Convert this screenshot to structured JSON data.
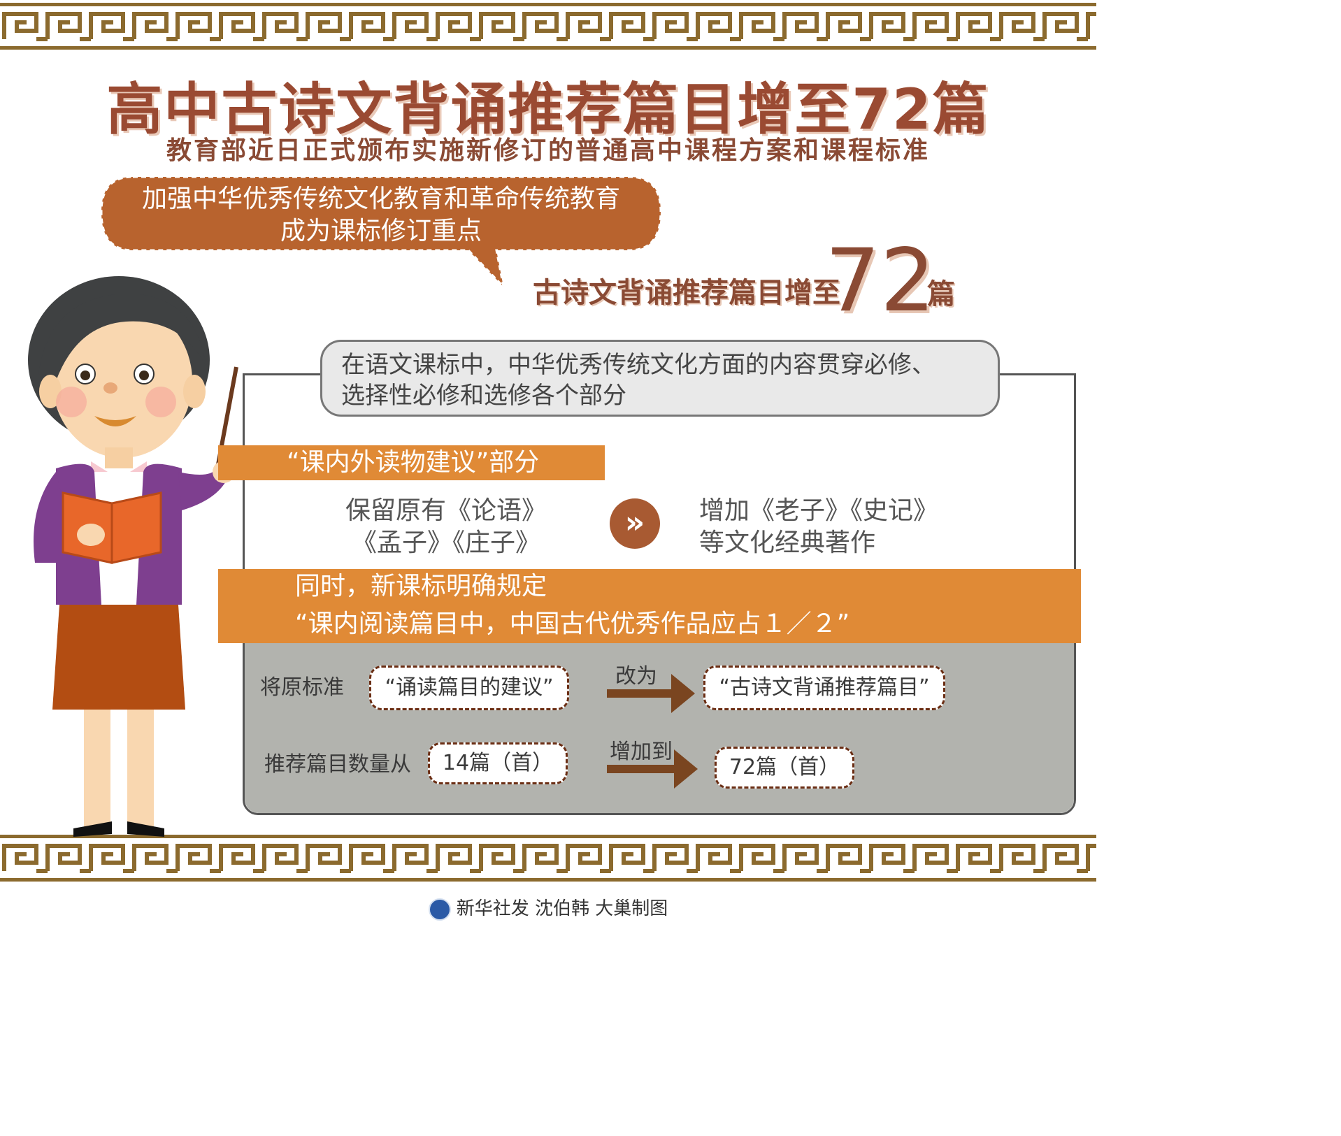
{
  "title": "高中古诗文背诵推荐篇目增至72篇",
  "subtitle": "教育部近日正式颁布实施新修订的普通高中课程方案和课程标准",
  "bubble": {
    "line1": "加强中华优秀传统文化教育和革命传统教育",
    "line2": "成为课标修订重点"
  },
  "highlight": {
    "text": "古诗文背诵推荐篇目增至",
    "number": "72",
    "unit": "篇"
  },
  "grey_box": {
    "line1": "在语文课标中，中华优秀传统文化方面的内容贯穿必修、",
    "line2": "选择性必修和选修各个部分"
  },
  "section1": {
    "label": "“课内外读物建议”部分",
    "keep_line1": "保留原有《论语》",
    "keep_line2": "《孟子》《庄子》",
    "add_line1": "增加《老子》《史记》",
    "add_line2": "等文化经典著作",
    "arrow": "»"
  },
  "section2": {
    "line1": "同时，新课标明确规定",
    "line2": "“课内阅读篇目中，中国古代优秀作品应占１／２”"
  },
  "row1": {
    "label": "将原标准",
    "from": "“诵读篇目的建议”",
    "verb": "改为",
    "to": "“古诗文背诵推荐篇目”"
  },
  "row2": {
    "label": "推荐篇目数量从",
    "from": "14篇（首）",
    "verb": "增加到",
    "to": "72篇（首）"
  },
  "footer": "新华社发  沈伯韩  大巢制图",
  "colors": {
    "brown": "#8a4a34",
    "orange": "#e08a36",
    "bubble": "#b8632e",
    "gray_panel": "#b2b3ae",
    "border_gold": "#8b6a2e"
  }
}
